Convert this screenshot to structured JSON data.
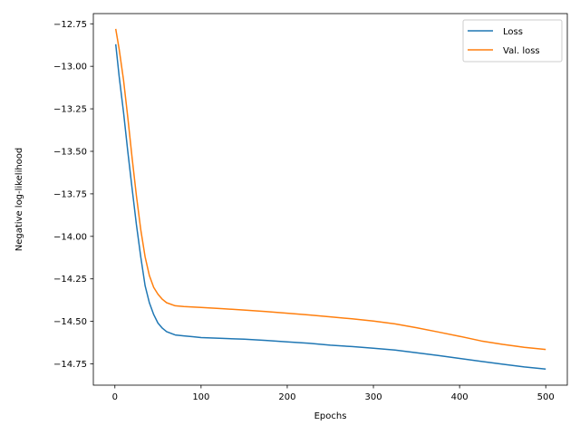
{
  "chart_data": {
    "type": "line",
    "xlabel": "Epochs",
    "ylabel": "Negative log-likelihood",
    "xlim": [
      -25,
      525
    ],
    "ylim": [
      -14.875,
      -12.69
    ],
    "x_ticks": [
      0,
      100,
      200,
      300,
      400,
      500
    ],
    "x_tick_labels": [
      "0",
      "100",
      "200",
      "300",
      "400",
      "500"
    ],
    "y_ticks": [
      -12.75,
      -13.0,
      -13.25,
      -13.5,
      -13.75,
      -14.0,
      -14.25,
      -14.5,
      -14.75
    ],
    "y_tick_labels": [
      "−12.75",
      "−13.00",
      "−13.25",
      "−13.50",
      "−13.75",
      "−14.00",
      "−14.25",
      "−14.50",
      "−14.75"
    ],
    "grid": false,
    "legend_position": "top-right",
    "series": [
      {
        "name": "Loss",
        "color": "#1f77b4",
        "x": [
          1,
          5,
          10,
          15,
          20,
          25,
          30,
          35,
          40,
          45,
          50,
          55,
          60,
          65,
          70,
          80,
          90,
          100,
          125,
          150,
          175,
          200,
          225,
          250,
          275,
          300,
          325,
          350,
          375,
          400,
          425,
          450,
          475,
          500
        ],
        "y": [
          -12.87,
          -13.06,
          -13.27,
          -13.5,
          -13.72,
          -13.93,
          -14.12,
          -14.29,
          -14.39,
          -14.46,
          -14.51,
          -14.54,
          -14.56,
          -14.57,
          -14.58,
          -14.585,
          -14.59,
          -14.595,
          -14.6,
          -14.605,
          -14.612,
          -14.62,
          -14.628,
          -14.64,
          -14.648,
          -14.658,
          -14.668,
          -14.685,
          -14.7,
          -14.718,
          -14.735,
          -14.752,
          -14.768,
          -14.78
        ]
      },
      {
        "name": "Val. loss",
        "color": "#ff7f0e",
        "x": [
          1,
          5,
          10,
          15,
          20,
          25,
          30,
          35,
          40,
          45,
          50,
          55,
          60,
          70,
          80,
          100,
          125,
          150,
          175,
          200,
          225,
          250,
          275,
          300,
          325,
          350,
          375,
          400,
          425,
          450,
          475,
          500
        ],
        "y": [
          -12.78,
          -12.9,
          -13.08,
          -13.3,
          -13.54,
          -13.76,
          -13.96,
          -14.12,
          -14.23,
          -14.3,
          -14.34,
          -14.37,
          -14.39,
          -14.408,
          -14.413,
          -14.418,
          -14.425,
          -14.433,
          -14.442,
          -14.452,
          -14.462,
          -14.473,
          -14.485,
          -14.498,
          -14.515,
          -14.537,
          -14.562,
          -14.588,
          -14.615,
          -14.635,
          -14.652,
          -14.665
        ]
      }
    ]
  }
}
